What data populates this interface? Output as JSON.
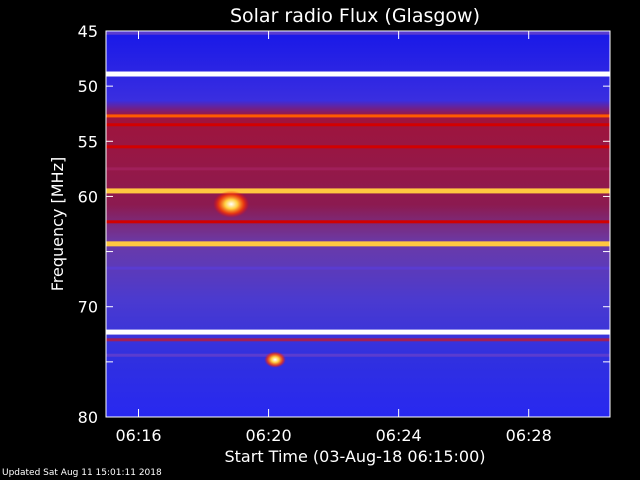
{
  "chart_data": {
    "type": "heatmap",
    "title": "Solar radio Flux (Glasgow)",
    "xlabel": "Start Time (03-Aug-18 06:15:00)",
    "ylabel": "Frequency [MHz]",
    "x_range_minutes": [
      0,
      15.5
    ],
    "x_ticks": [
      {
        "label": "06:16",
        "minute": 1
      },
      {
        "label": "06:20",
        "minute": 5
      },
      {
        "label": "06:24",
        "minute": 9
      },
      {
        "label": "06:28",
        "minute": 13
      }
    ],
    "y_range_mhz": [
      45,
      80
    ],
    "y_axis_inverted": true,
    "y_ticks": [
      45,
      50,
      55,
      60,
      65,
      70,
      75,
      80
    ],
    "y_tick_labels": [
      "45",
      "50",
      "55",
      "60",
      "",
      "70",
      "",
      "80"
    ],
    "colormap": [
      "#00008c",
      "#2020ff",
      "#5a3cd0",
      "#a01f5a",
      "#d20000",
      "#ff5a00",
      "#ffc840",
      "#ffffff"
    ],
    "bands": [
      {
        "freq_mhz": 45.2,
        "intensity": 0.35
      },
      {
        "freq_mhz": 48.9,
        "intensity": 1.0
      },
      {
        "freq_mhz": 52.7,
        "intensity": 0.72
      },
      {
        "freq_mhz": 53.5,
        "intensity": 0.6
      },
      {
        "freq_mhz": 55.5,
        "intensity": 0.5
      },
      {
        "freq_mhz": 57.5,
        "intensity": 0.48
      },
      {
        "freq_mhz": 59.5,
        "intensity": 0.88
      },
      {
        "freq_mhz": 62.3,
        "intensity": 0.5
      },
      {
        "freq_mhz": 64.3,
        "intensity": 0.85
      },
      {
        "freq_mhz": 66.5,
        "intensity": 0.35
      },
      {
        "freq_mhz": 72.3,
        "intensity": 0.95
      },
      {
        "freq_mhz": 73.0,
        "intensity": 0.4
      },
      {
        "freq_mhz": 74.4,
        "intensity": 0.35
      }
    ],
    "bursts": [
      {
        "minute": 3.85,
        "freq_mhz": 60.7,
        "intensity": 1.0
      },
      {
        "minute": 5.2,
        "freq_mhz": 74.8,
        "intensity": 0.6
      }
    ]
  },
  "footer": "Updated Sat Aug 11 15:01:11 2018"
}
